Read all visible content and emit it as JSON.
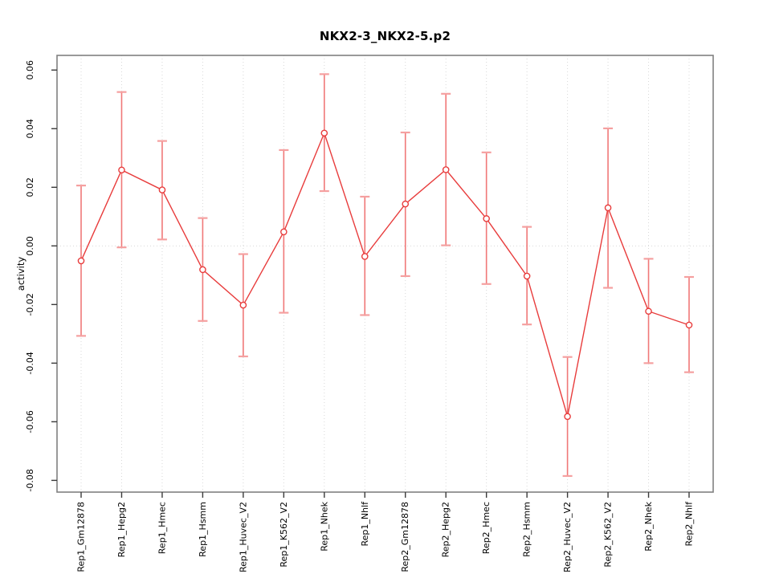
{
  "figure": {
    "title": "NKX2-3_NKX2-5.p2",
    "ylabel": "activity"
  },
  "chart_data": {
    "type": "line",
    "subtype": "points-with-error-bars",
    "title": "NKX2-3_NKX2-5.p2",
    "xlabel": "",
    "ylabel": "activity",
    "legend_position": "none",
    "grid": "dotted vertical gridline at each category; dotted horizontal line at y=0",
    "ylim": [
      -0.084,
      0.065
    ],
    "ytick_labels": [
      "-0.08",
      "-0.06",
      "-0.04",
      "-0.02",
      "0.00",
      "0.02",
      "0.04",
      "0.06"
    ],
    "categories": [
      "Rep1_Gm12878",
      "Rep1_Hepg2",
      "Rep1_Hmec",
      "Rep1_Hsmm",
      "Rep1_Huvec_V2",
      "Rep1_K562_V2",
      "Rep1_Nhek",
      "Rep1_Nhlf",
      "Rep2_Gm12878",
      "Rep2_Hepg2",
      "Rep2_Hmec",
      "Rep2_Hsmm",
      "Rep2_Huvec_V2",
      "Rep2_K562_V2",
      "Rep2_Nhek",
      "Rep2_Nhlf"
    ],
    "series": [
      {
        "name": "mean_activity",
        "values": [
          -0.0051,
          0.0259,
          0.0191,
          -0.0081,
          -0.0202,
          0.0048,
          0.0385,
          -0.0036,
          0.0143,
          0.026,
          0.0093,
          -0.0103,
          -0.0582,
          0.013,
          -0.0223,
          -0.027
        ]
      },
      {
        "name": "upper_error",
        "values": [
          0.0206,
          0.0525,
          0.0358,
          0.0095,
          -0.0028,
          0.0327,
          0.0586,
          0.0168,
          0.0387,
          0.0519,
          0.0319,
          0.0065,
          -0.0379,
          0.0401,
          -0.0044,
          -0.0106
        ]
      },
      {
        "name": "lower_error",
        "values": [
          -0.0307,
          -0.0005,
          0.0022,
          -0.0256,
          -0.0377,
          -0.0228,
          0.0187,
          -0.0236,
          -0.0103,
          0.0002,
          -0.013,
          -0.0268,
          -0.0785,
          -0.0143,
          -0.04,
          -0.0431
        ]
      }
    ],
    "colors": {
      "line": "#e83c3c",
      "point_stroke": "#e83c3c",
      "error_bar": "#f07878",
      "error_cap": "#f5a0a0",
      "grid": "#d8d8d8",
      "axis_box": "#808080",
      "tick": "#3a3a3a",
      "text": "#000000"
    }
  }
}
